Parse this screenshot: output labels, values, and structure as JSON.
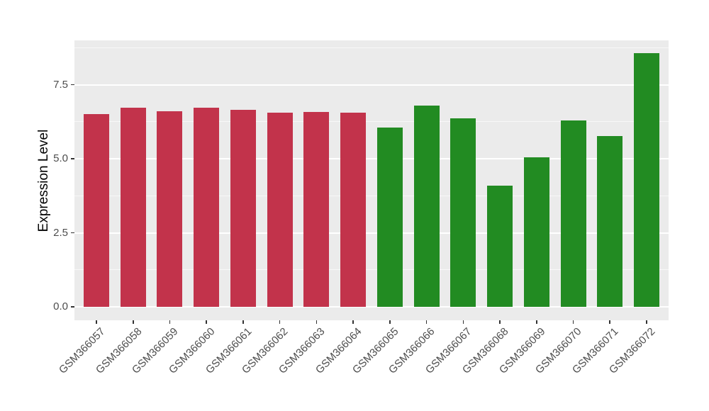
{
  "chart_data": {
    "type": "bar",
    "title": "",
    "xlabel": "",
    "ylabel": "Expression Level",
    "categories": [
      "GSM366057",
      "GSM366058",
      "GSM366059",
      "GSM366060",
      "GSM366061",
      "GSM366062",
      "GSM366063",
      "GSM366064",
      "GSM366065",
      "GSM366066",
      "GSM366067",
      "GSM366068",
      "GSM366069",
      "GSM366070",
      "GSM366071",
      "GSM366072"
    ],
    "values": [
      6.5,
      6.72,
      6.6,
      6.73,
      6.66,
      6.55,
      6.58,
      6.55,
      6.06,
      6.8,
      6.38,
      4.1,
      5.06,
      6.3,
      5.76,
      8.58
    ],
    "bar_colors": [
      "#C2334B",
      "#C2334B",
      "#C2334B",
      "#C2334B",
      "#C2334B",
      "#C2334B",
      "#C2334B",
      "#C2334B",
      "#228B22",
      "#228B22",
      "#228B22",
      "#228B22",
      "#228B22",
      "#228B22",
      "#228B22",
      "#228B22"
    ],
    "group_colors": {
      "first_group": "#C2334B",
      "second_group": "#228B22"
    },
    "ylim": [
      0,
      9
    ],
    "yticks": [
      0,
      2.5,
      5,
      7.5
    ],
    "ytick_labels": [
      "0.0",
      "2.5",
      "5.0",
      "7.5"
    ],
    "yticks_minor": [
      1.25,
      3.75,
      6.25,
      8.75
    ],
    "grid": "on",
    "legend": "none",
    "panel_background": "#EBEBEB",
    "grid_color": "#FFFFFF",
    "tick_mark_color": "#333333",
    "axis_text_color": "#4D4D4D",
    "axis_title_color": "#000000"
  }
}
